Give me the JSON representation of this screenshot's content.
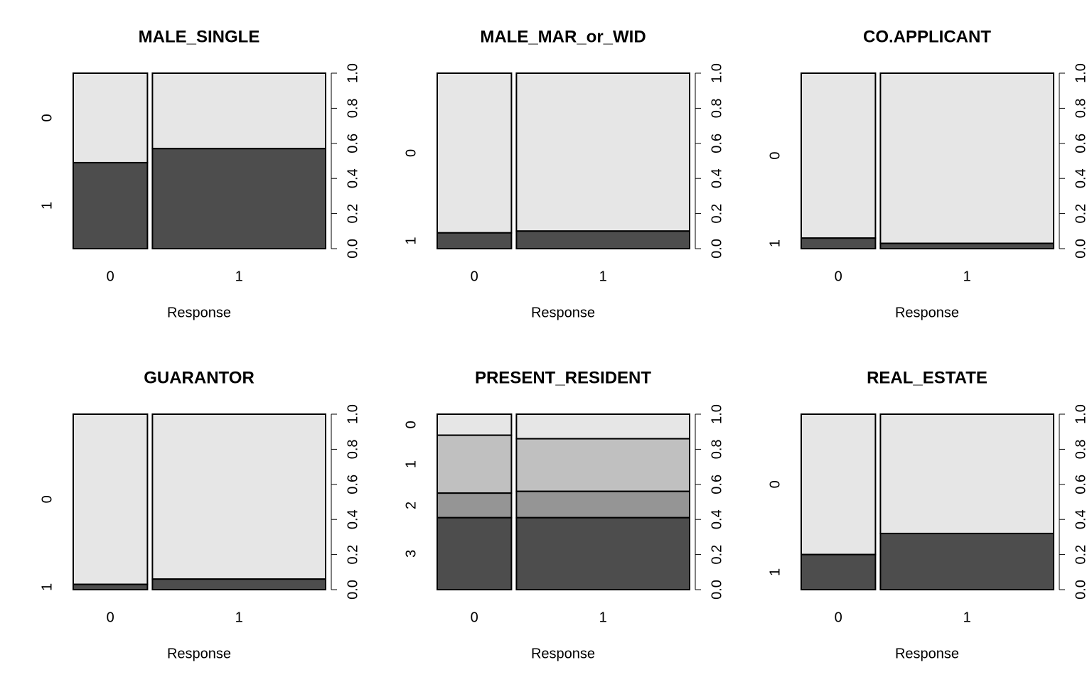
{
  "chart_data": [
    {
      "type": "spineplot",
      "title": "MALE_SINGLE",
      "xlabel": "Response",
      "categories": [
        "0",
        "1"
      ],
      "x_proportions": [
        0.3,
        0.7
      ],
      "series": [
        {
          "name": "0",
          "color": "#e6e6e6",
          "values": [
            0.51,
            0.43
          ]
        },
        {
          "name": "1",
          "color": "#4d4d4d",
          "values": [
            0.49,
            0.57
          ]
        }
      ],
      "ylim": [
        0,
        1
      ],
      "yticks": [
        {
          "value": 0,
          "label": "0.0"
        },
        {
          "value": 0.2,
          "label": "0.2"
        },
        {
          "value": 0.4,
          "label": "0.4"
        },
        {
          "value": 0.6,
          "label": "0.6"
        },
        {
          "value": 0.8,
          "label": "0.8"
        },
        {
          "value": 1,
          "label": "1.0"
        }
      ]
    },
    {
      "type": "spineplot",
      "title": "MALE_MAR_or_WID",
      "xlabel": "Response",
      "categories": [
        "0",
        "1"
      ],
      "x_proportions": [
        0.3,
        0.7
      ],
      "series": [
        {
          "name": "0",
          "color": "#e6e6e6",
          "values": [
            0.91,
            0.9
          ]
        },
        {
          "name": "1",
          "color": "#4d4d4d",
          "values": [
            0.09,
            0.1
          ]
        }
      ],
      "ylim": [
        0,
        1
      ],
      "yticks": [
        {
          "value": 0,
          "label": "0.0"
        },
        {
          "value": 0.2,
          "label": "0.2"
        },
        {
          "value": 0.4,
          "label": "0.4"
        },
        {
          "value": 0.6,
          "label": "0.6"
        },
        {
          "value": 0.8,
          "label": "0.8"
        },
        {
          "value": 1,
          "label": "1.0"
        }
      ]
    },
    {
      "type": "spineplot",
      "title": "CO.APPLICANT",
      "xlabel": "Response",
      "categories": [
        "0",
        "1"
      ],
      "x_proportions": [
        0.3,
        0.7
      ],
      "series": [
        {
          "name": "0",
          "color": "#e6e6e6",
          "values": [
            0.94,
            0.97
          ]
        },
        {
          "name": "1",
          "color": "#4d4d4d",
          "values": [
            0.06,
            0.03
          ]
        }
      ],
      "ylim": [
        0,
        1
      ],
      "yticks": [
        {
          "value": 0,
          "label": "0.0"
        },
        {
          "value": 0.2,
          "label": "0.2"
        },
        {
          "value": 0.4,
          "label": "0.4"
        },
        {
          "value": 0.6,
          "label": "0.6"
        },
        {
          "value": 0.8,
          "label": "0.8"
        },
        {
          "value": 1,
          "label": "1.0"
        }
      ]
    },
    {
      "type": "spineplot",
      "title": "GUARANTOR",
      "xlabel": "Response",
      "categories": [
        "0",
        "1"
      ],
      "x_proportions": [
        0.3,
        0.7
      ],
      "series": [
        {
          "name": "0",
          "color": "#e6e6e6",
          "values": [
            0.97,
            0.94
          ]
        },
        {
          "name": "1",
          "color": "#4d4d4d",
          "values": [
            0.03,
            0.06
          ]
        }
      ],
      "ylim": [
        0,
        1
      ],
      "yticks": [
        {
          "value": 0,
          "label": "0.0"
        },
        {
          "value": 0.2,
          "label": "0.2"
        },
        {
          "value": 0.4,
          "label": "0.4"
        },
        {
          "value": 0.6,
          "label": "0.6"
        },
        {
          "value": 0.8,
          "label": "0.8"
        },
        {
          "value": 1,
          "label": "1.0"
        }
      ]
    },
    {
      "type": "spineplot",
      "title": "PRESENT_RESIDENT",
      "xlabel": "Response",
      "categories": [
        "0",
        "1"
      ],
      "x_proportions": [
        0.3,
        0.7
      ],
      "series": [
        {
          "name": "0",
          "color": "#e6e6e6",
          "values": [
            0.12,
            0.14
          ]
        },
        {
          "name": "1",
          "color": "#c0c0c0",
          "values": [
            0.33,
            0.3
          ]
        },
        {
          "name": "2",
          "color": "#959595",
          "values": [
            0.14,
            0.15
          ]
        },
        {
          "name": "3",
          "color": "#4d4d4d",
          "values": [
            0.41,
            0.41
          ]
        }
      ],
      "ylim": [
        0,
        1
      ],
      "yticks": [
        {
          "value": 0,
          "label": "0.0"
        },
        {
          "value": 0.2,
          "label": "0.2"
        },
        {
          "value": 0.4,
          "label": "0.4"
        },
        {
          "value": 0.6,
          "label": "0.6"
        },
        {
          "value": 0.8,
          "label": "0.8"
        },
        {
          "value": 1,
          "label": "1.0"
        }
      ]
    },
    {
      "type": "spineplot",
      "title": "REAL_ESTATE",
      "xlabel": "Response",
      "categories": [
        "0",
        "1"
      ],
      "x_proportions": [
        0.3,
        0.7
      ],
      "series": [
        {
          "name": "0",
          "color": "#e6e6e6",
          "values": [
            0.8,
            0.68
          ]
        },
        {
          "name": "1",
          "color": "#4d4d4d",
          "values": [
            0.2,
            0.32
          ]
        }
      ],
      "ylim": [
        0,
        1
      ],
      "yticks": [
        {
          "value": 0,
          "label": "0.0"
        },
        {
          "value": 0.2,
          "label": "0.2"
        },
        {
          "value": 0.4,
          "label": "0.4"
        },
        {
          "value": 0.6,
          "label": "0.6"
        },
        {
          "value": 0.8,
          "label": "0.8"
        },
        {
          "value": 1,
          "label": "1.0"
        }
      ]
    }
  ]
}
